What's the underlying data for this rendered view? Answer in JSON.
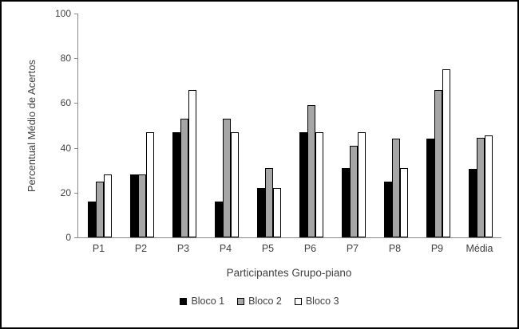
{
  "chart_data": {
    "type": "bar",
    "title": "",
    "categories": [
      "P1",
      "P2",
      "P3",
      "P4",
      "P5",
      "P6",
      "P7",
      "P8",
      "P9",
      "Média"
    ],
    "series": [
      {
        "name": "Bloco 1",
        "color": "#000000",
        "values": [
          16,
          28,
          47,
          16,
          22,
          47,
          31,
          25,
          44,
          30.7
        ]
      },
      {
        "name": "Bloco 2",
        "color": "#a6a6a6",
        "values": [
          25,
          28,
          53,
          53,
          31,
          59,
          41,
          44,
          66,
          44.4
        ]
      },
      {
        "name": "Bloco 3",
        "color": "#ffffff",
        "values": [
          28,
          47,
          66,
          47,
          22,
          47,
          47,
          31,
          75,
          45.6
        ]
      }
    ],
    "xlabel": "Participantes Grupo-piano",
    "ylabel": "Percentual Médio de Acertos",
    "ylim": [
      0,
      100
    ],
    "yticks": [
      0,
      20,
      40,
      60,
      80,
      100
    ],
    "grid": false,
    "legend_position": "bottom",
    "axis_color": "#898989",
    "text_color": "#404040"
  }
}
